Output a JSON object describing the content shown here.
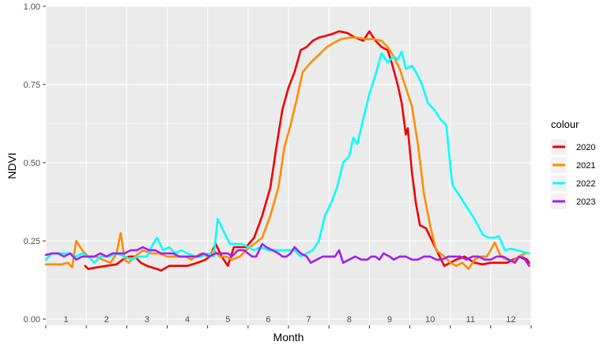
{
  "chart_data": {
    "type": "line",
    "title": "",
    "xlabel": "Month",
    "ylabel": "NDVI",
    "ylim": [
      0,
      1
    ],
    "xlim": [
      0.5,
      12.5
    ],
    "y_ticks": [
      "0.00",
      "0.25",
      "0.50",
      "0.75",
      "1.00"
    ],
    "x_ticks": [
      "1",
      "2",
      "3",
      "4",
      "5",
      "6",
      "7",
      "8",
      "9",
      "10",
      "11",
      "12"
    ],
    "grid": true,
    "legend": {
      "title": "colour",
      "position": "right"
    },
    "series": [
      {
        "name": "2020",
        "color": "#EE0000",
        "points": [
          [
            0.97,
            0.17
          ],
          [
            1.05,
            0.16
          ],
          [
            1.25,
            0.165
          ],
          [
            1.5,
            0.17
          ],
          [
            1.75,
            0.175
          ],
          [
            1.9,
            0.19
          ],
          [
            2.05,
            0.2
          ],
          [
            2.2,
            0.2
          ],
          [
            2.35,
            0.18
          ],
          [
            2.5,
            0.17
          ],
          [
            2.75,
            0.16
          ],
          [
            2.85,
            0.155
          ],
          [
            3.05,
            0.17
          ],
          [
            3.25,
            0.17
          ],
          [
            3.5,
            0.17
          ],
          [
            3.75,
            0.18
          ],
          [
            3.95,
            0.19
          ],
          [
            4.05,
            0.2
          ],
          [
            4.2,
            0.24
          ],
          [
            4.35,
            0.2
          ],
          [
            4.5,
            0.17
          ],
          [
            4.65,
            0.23
          ],
          [
            4.8,
            0.23
          ],
          [
            4.95,
            0.23
          ],
          [
            5.15,
            0.26
          ],
          [
            5.35,
            0.33
          ],
          [
            5.55,
            0.42
          ],
          [
            5.7,
            0.55
          ],
          [
            5.85,
            0.67
          ],
          [
            6.0,
            0.74
          ],
          [
            6.15,
            0.79
          ],
          [
            6.3,
            0.86
          ],
          [
            6.45,
            0.87
          ],
          [
            6.6,
            0.89
          ],
          [
            6.75,
            0.9
          ],
          [
            6.9,
            0.905
          ],
          [
            7.05,
            0.91
          ],
          [
            7.25,
            0.92
          ],
          [
            7.45,
            0.915
          ],
          [
            7.65,
            0.9
          ],
          [
            7.85,
            0.89
          ],
          [
            8.0,
            0.92
          ],
          [
            8.15,
            0.89
          ],
          [
            8.3,
            0.87
          ],
          [
            8.45,
            0.86
          ],
          [
            8.55,
            0.82
          ],
          [
            8.7,
            0.75
          ],
          [
            8.8,
            0.69
          ],
          [
            8.9,
            0.59
          ],
          [
            8.95,
            0.61
          ],
          [
            9.05,
            0.47
          ],
          [
            9.15,
            0.37
          ],
          [
            9.25,
            0.3
          ],
          [
            9.4,
            0.29
          ],
          [
            9.55,
            0.25
          ],
          [
            9.7,
            0.21
          ],
          [
            9.85,
            0.17
          ],
          [
            10.0,
            0.18
          ],
          [
            10.15,
            0.19
          ],
          [
            10.35,
            0.2
          ],
          [
            10.6,
            0.18
          ],
          [
            10.8,
            0.175
          ],
          [
            11.0,
            0.18
          ],
          [
            11.2,
            0.18
          ],
          [
            11.4,
            0.18
          ],
          [
            11.55,
            0.19
          ],
          [
            11.75,
            0.2
          ],
          [
            11.9,
            0.19
          ],
          [
            11.95,
            0.18
          ]
        ]
      },
      {
        "name": "2021",
        "color": "#FF8C00",
        "points": [
          [
            0.0,
            0.175
          ],
          [
            0.2,
            0.175
          ],
          [
            0.4,
            0.175
          ],
          [
            0.55,
            0.18
          ],
          [
            0.65,
            0.165
          ],
          [
            0.75,
            0.25
          ],
          [
            0.9,
            0.22
          ],
          [
            1.05,
            0.2
          ],
          [
            1.25,
            0.2
          ],
          [
            1.4,
            0.19
          ],
          [
            1.6,
            0.18
          ],
          [
            1.75,
            0.21
          ],
          [
            1.85,
            0.275
          ],
          [
            1.95,
            0.19
          ],
          [
            2.05,
            0.18
          ],
          [
            2.2,
            0.2
          ],
          [
            2.4,
            0.22
          ],
          [
            2.6,
            0.21
          ],
          [
            2.8,
            0.21
          ],
          [
            3.0,
            0.2
          ],
          [
            3.2,
            0.2
          ],
          [
            3.45,
            0.2
          ],
          [
            3.6,
            0.19
          ],
          [
            3.7,
            0.2
          ],
          [
            3.85,
            0.21
          ],
          [
            4.0,
            0.2
          ],
          [
            4.15,
            0.22
          ],
          [
            4.3,
            0.2
          ],
          [
            4.45,
            0.2
          ],
          [
            4.6,
            0.19
          ],
          [
            4.8,
            0.2
          ],
          [
            4.95,
            0.22
          ],
          [
            5.15,
            0.24
          ],
          [
            5.35,
            0.26
          ],
          [
            5.55,
            0.33
          ],
          [
            5.75,
            0.42
          ],
          [
            5.9,
            0.55
          ],
          [
            6.05,
            0.62
          ],
          [
            6.2,
            0.7
          ],
          [
            6.35,
            0.79
          ],
          [
            6.55,
            0.82
          ],
          [
            6.75,
            0.845
          ],
          [
            6.95,
            0.87
          ],
          [
            7.15,
            0.885
          ],
          [
            7.3,
            0.895
          ],
          [
            7.5,
            0.9
          ],
          [
            7.7,
            0.9
          ],
          [
            7.9,
            0.895
          ],
          [
            8.1,
            0.895
          ],
          [
            8.3,
            0.89
          ],
          [
            8.45,
            0.87
          ],
          [
            8.6,
            0.84
          ],
          [
            8.75,
            0.8
          ],
          [
            8.9,
            0.74
          ],
          [
            9.05,
            0.68
          ],
          [
            9.2,
            0.56
          ],
          [
            9.35,
            0.4
          ],
          [
            9.5,
            0.3
          ],
          [
            9.65,
            0.22
          ],
          [
            9.85,
            0.2
          ],
          [
            10.0,
            0.18
          ],
          [
            10.15,
            0.17
          ],
          [
            10.3,
            0.18
          ],
          [
            10.45,
            0.16
          ],
          [
            10.6,
            0.19
          ],
          [
            10.75,
            0.2
          ],
          [
            10.9,
            0.2
          ],
          [
            11.0,
            0.22
          ],
          [
            11.1,
            0.245
          ],
          [
            11.25,
            0.2
          ],
          [
            11.4,
            0.19
          ],
          [
            11.55,
            0.185
          ],
          [
            11.7,
            0.2
          ],
          [
            11.85,
            0.21
          ]
        ]
      },
      {
        "name": "2022",
        "color": "#00FFFF",
        "points": [
          [
            0.0,
            0.19
          ],
          [
            0.15,
            0.21
          ],
          [
            0.3,
            0.21
          ],
          [
            0.45,
            0.21
          ],
          [
            0.6,
            0.21
          ],
          [
            0.75,
            0.2
          ],
          [
            0.9,
            0.21
          ],
          [
            1.05,
            0.2
          ],
          [
            1.2,
            0.18
          ],
          [
            1.35,
            0.2
          ],
          [
            1.55,
            0.2
          ],
          [
            1.75,
            0.21
          ],
          [
            1.95,
            0.2
          ],
          [
            2.1,
            0.19
          ],
          [
            2.3,
            0.2
          ],
          [
            2.5,
            0.2
          ],
          [
            2.65,
            0.24
          ],
          [
            2.75,
            0.26
          ],
          [
            2.9,
            0.22
          ],
          [
            3.05,
            0.23
          ],
          [
            3.2,
            0.21
          ],
          [
            3.35,
            0.22
          ],
          [
            3.5,
            0.21
          ],
          [
            3.7,
            0.2
          ],
          [
            3.85,
            0.2
          ],
          [
            4.0,
            0.21
          ],
          [
            4.15,
            0.2
          ],
          [
            4.25,
            0.32
          ],
          [
            4.4,
            0.28
          ],
          [
            4.55,
            0.24
          ],
          [
            4.7,
            0.24
          ],
          [
            4.85,
            0.24
          ],
          [
            5.0,
            0.23
          ],
          [
            5.15,
            0.22
          ],
          [
            5.3,
            0.23
          ],
          [
            5.5,
            0.22
          ],
          [
            5.65,
            0.22
          ],
          [
            5.8,
            0.22
          ],
          [
            6.0,
            0.22
          ],
          [
            6.15,
            0.22
          ],
          [
            6.3,
            0.2
          ],
          [
            6.45,
            0.21
          ],
          [
            6.6,
            0.22
          ],
          [
            6.75,
            0.25
          ],
          [
            6.9,
            0.33
          ],
          [
            7.05,
            0.37
          ],
          [
            7.2,
            0.42
          ],
          [
            7.35,
            0.5
          ],
          [
            7.5,
            0.52
          ],
          [
            7.6,
            0.58
          ],
          [
            7.7,
            0.56
          ],
          [
            7.85,
            0.64
          ],
          [
            8.0,
            0.72
          ],
          [
            8.15,
            0.78
          ],
          [
            8.3,
            0.85
          ],
          [
            8.45,
            0.82
          ],
          [
            8.6,
            0.84
          ],
          [
            8.7,
            0.83
          ],
          [
            8.8,
            0.855
          ],
          [
            8.9,
            0.8
          ],
          [
            9.05,
            0.81
          ],
          [
            9.15,
            0.79
          ],
          [
            9.3,
            0.75
          ],
          [
            9.45,
            0.69
          ],
          [
            9.6,
            0.67
          ],
          [
            9.75,
            0.64
          ],
          [
            9.9,
            0.62
          ],
          [
            10.05,
            0.43
          ],
          [
            10.2,
            0.4
          ],
          [
            10.4,
            0.36
          ],
          [
            10.6,
            0.32
          ],
          [
            10.8,
            0.27
          ],
          [
            10.95,
            0.26
          ],
          [
            11.1,
            0.26
          ],
          [
            11.2,
            0.265
          ],
          [
            11.35,
            0.22
          ],
          [
            11.5,
            0.225
          ],
          [
            11.65,
            0.22
          ],
          [
            11.8,
            0.215
          ],
          [
            11.95,
            0.21
          ]
        ]
      },
      {
        "name": "2023",
        "color": "#A020F0",
        "points": [
          [
            0.0,
            0.205
          ],
          [
            0.15,
            0.21
          ],
          [
            0.3,
            0.21
          ],
          [
            0.45,
            0.2
          ],
          [
            0.6,
            0.21
          ],
          [
            0.75,
            0.19
          ],
          [
            0.9,
            0.2
          ],
          [
            1.05,
            0.2
          ],
          [
            1.2,
            0.2
          ],
          [
            1.35,
            0.21
          ],
          [
            1.5,
            0.2
          ],
          [
            1.65,
            0.21
          ],
          [
            1.8,
            0.21
          ],
          [
            1.95,
            0.21
          ],
          [
            2.1,
            0.22
          ],
          [
            2.25,
            0.22
          ],
          [
            2.4,
            0.23
          ],
          [
            2.55,
            0.22
          ],
          [
            2.7,
            0.22
          ],
          [
            2.85,
            0.21
          ],
          [
            3.0,
            0.21
          ],
          [
            3.15,
            0.21
          ],
          [
            3.3,
            0.2
          ],
          [
            3.45,
            0.2
          ],
          [
            3.6,
            0.2
          ],
          [
            3.75,
            0.2
          ],
          [
            3.9,
            0.21
          ],
          [
            4.05,
            0.2
          ],
          [
            4.2,
            0.21
          ],
          [
            4.35,
            0.21
          ],
          [
            4.5,
            0.21
          ],
          [
            4.6,
            0.2
          ],
          [
            4.75,
            0.22
          ],
          [
            4.9,
            0.22
          ],
          [
            5.0,
            0.21
          ],
          [
            5.1,
            0.2
          ],
          [
            5.2,
            0.2
          ],
          [
            5.35,
            0.24
          ],
          [
            5.45,
            0.23
          ],
          [
            5.6,
            0.22
          ],
          [
            5.75,
            0.21
          ],
          [
            5.85,
            0.2
          ],
          [
            5.95,
            0.2
          ],
          [
            6.05,
            0.21
          ],
          [
            6.15,
            0.23
          ],
          [
            6.3,
            0.21
          ],
          [
            6.45,
            0.2
          ],
          [
            6.55,
            0.18
          ],
          [
            6.7,
            0.19
          ],
          [
            6.85,
            0.2
          ],
          [
            7.0,
            0.2
          ],
          [
            7.15,
            0.2
          ],
          [
            7.25,
            0.22
          ],
          [
            7.35,
            0.18
          ],
          [
            7.5,
            0.19
          ],
          [
            7.65,
            0.2
          ],
          [
            7.8,
            0.19
          ],
          [
            7.95,
            0.19
          ],
          [
            8.05,
            0.2
          ],
          [
            8.15,
            0.2
          ],
          [
            8.25,
            0.19
          ],
          [
            8.35,
            0.21
          ],
          [
            8.5,
            0.2
          ],
          [
            8.6,
            0.19
          ],
          [
            8.75,
            0.2
          ],
          [
            8.9,
            0.2
          ],
          [
            9.05,
            0.19
          ],
          [
            9.2,
            0.19
          ],
          [
            9.35,
            0.2
          ],
          [
            9.5,
            0.2
          ],
          [
            9.65,
            0.19
          ],
          [
            9.8,
            0.19
          ],
          [
            9.95,
            0.2
          ],
          [
            10.1,
            0.2
          ],
          [
            10.25,
            0.2
          ],
          [
            10.4,
            0.19
          ],
          [
            10.55,
            0.2
          ],
          [
            10.7,
            0.2
          ],
          [
            10.85,
            0.19
          ],
          [
            11.0,
            0.19
          ],
          [
            11.15,
            0.2
          ],
          [
            11.3,
            0.2
          ],
          [
            11.45,
            0.19
          ],
          [
            11.6,
            0.18
          ],
          [
            11.7,
            0.2
          ],
          [
            11.85,
            0.19
          ],
          [
            11.95,
            0.17
          ]
        ]
      }
    ]
  }
}
